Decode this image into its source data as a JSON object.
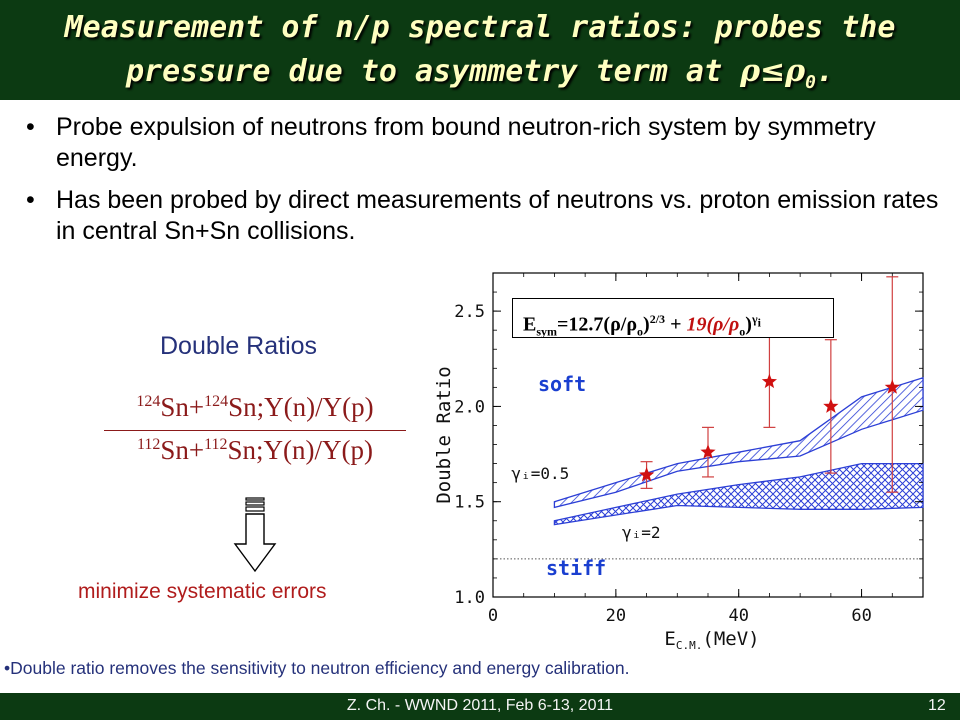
{
  "slide": {
    "title_line1": "Measurement of n/p spectral ratios: probes  the",
    "title_line2_pre": "pressure due to asymmetry term at ",
    "title_math": "ρ≤ρ",
    "title_math_sub": "0",
    "title_end": ".",
    "bullets": [
      {
        "marker": "•",
        "text": "Probe expulsion  of  neutrons from bound neutron-rich system by symmetry energy."
      },
      {
        "marker": "•",
        "text": "Has been probed by direct measurements of neutrons vs. proton emission rates in central Sn+Sn collisions."
      }
    ],
    "double_ratios_title": "Double Ratios",
    "fraction": {
      "num_a": "124",
      "num_b": "Sn+",
      "num_c": "124",
      "num_d": "Sn;Y(n)/Y(p)",
      "den_a": "112",
      "den_b": "Sn+",
      "den_c": "112",
      "den_d": "Sn;Y(n)/Y(p)"
    },
    "minimize_label": "minimize systematic errors",
    "bottom_note": "•Double ratio removes the sensitivity to neutron efficiency and energy calibration.",
    "footer": "Z. Ch. - WWND 2011, Feb 6-13, 2011",
    "page_number": "12"
  },
  "plot": {
    "equation": {
      "e": "E",
      "sym": "sym",
      "part1": "=12.7(ρ/ρ",
      "o1": "o",
      "part2": ")",
      "exp1": "2/3",
      "plus": " + ",
      "red": "19(ρ/ρ",
      "o2": "o",
      "part3": ")",
      "exp2": "γ",
      "exp2_sub": "i"
    },
    "soft_label": "soft",
    "stiff_label": "stiff",
    "gamma_05_label": "γᵢ=0.5",
    "gamma_2_label": "γᵢ=2",
    "ylabel": "Double Ratio",
    "xlabel_main": "E",
    "xlabel_sub": "C.M.",
    "xlabel_unit": "(MeV)",
    "x_ticks": [
      "0",
      "20",
      "40",
      "60"
    ],
    "y_ticks": [
      "1.0",
      "1.5",
      "2.0",
      "2.5"
    ],
    "colors": {
      "band": "#2c3fd6",
      "marker": "#d01010",
      "error": "#d04040"
    }
  },
  "chart_data": {
    "type": "scatter",
    "xlabel": "E C.M. (MeV)",
    "ylabel": "Double Ratio",
    "xlim": [
      0,
      70
    ],
    "ylim": [
      1.0,
      2.7
    ],
    "x_ticks": [
      0,
      20,
      40,
      60
    ],
    "y_ticks": [
      1.0,
      1.5,
      2.0,
      2.5
    ],
    "reference_line_y": 1.2,
    "points": [
      {
        "x": 25,
        "y": 1.64,
        "err_low": 1.57,
        "err_high": 1.71
      },
      {
        "x": 35,
        "y": 1.76,
        "err_low": 1.63,
        "err_high": 1.89
      },
      {
        "x": 45,
        "y": 2.13,
        "err_low": 1.89,
        "err_high": 2.37
      },
      {
        "x": 55,
        "y": 2.0,
        "err_low": 1.65,
        "err_high": 2.35
      },
      {
        "x": 65,
        "y": 2.1,
        "err_low": 1.55,
        "err_high": 2.68
      }
    ],
    "bands": [
      {
        "name": "γᵢ=0.5",
        "x": [
          10,
          20,
          30,
          40,
          50,
          60,
          70
        ],
        "lower": [
          1.47,
          1.55,
          1.66,
          1.71,
          1.74,
          1.88,
          1.98
        ],
        "upper": [
          1.5,
          1.6,
          1.7,
          1.76,
          1.82,
          2.05,
          2.15
        ]
      },
      {
        "name": "γᵢ=2",
        "x": [
          10,
          20,
          30,
          40,
          50,
          60,
          70
        ],
        "lower": [
          1.38,
          1.43,
          1.48,
          1.47,
          1.46,
          1.46,
          1.47
        ],
        "upper": [
          1.4,
          1.47,
          1.54,
          1.59,
          1.63,
          1.7,
          1.7
        ]
      }
    ]
  }
}
